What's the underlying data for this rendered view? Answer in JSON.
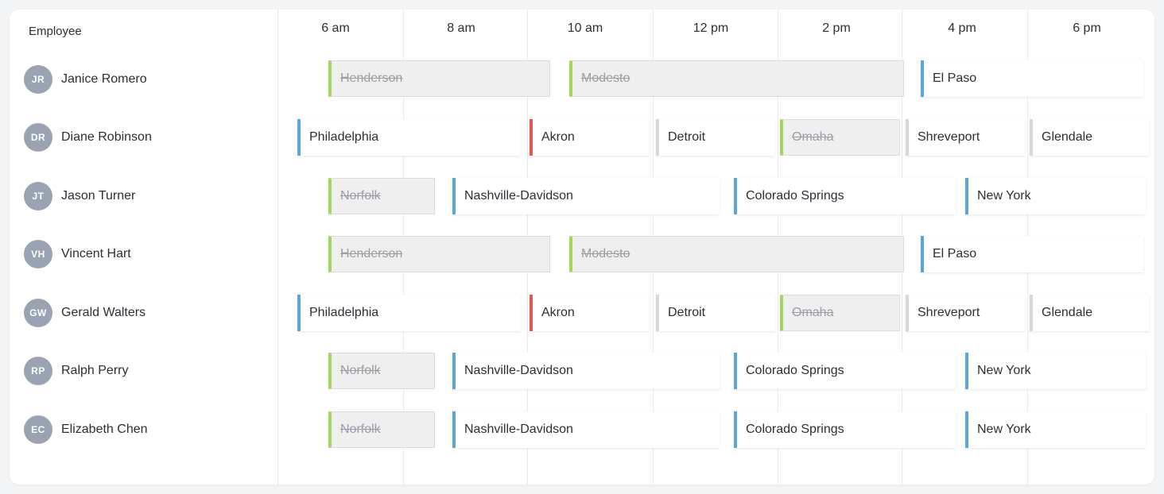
{
  "header": {
    "employee_label": "Employee"
  },
  "times": [
    "6 am",
    "8 am",
    "10 am",
    "12 pm",
    "2 pm",
    "4 pm",
    "6 pm"
  ],
  "employees": [
    {
      "initials": "JR",
      "name": "Janice Romero"
    },
    {
      "initials": "DR",
      "name": "Diane Robinson"
    },
    {
      "initials": "JT",
      "name": "Jason Turner"
    },
    {
      "initials": "VH",
      "name": "Vincent Hart"
    },
    {
      "initials": "GW",
      "name": "Gerald Walters"
    },
    {
      "initials": "RP",
      "name": "Ralph Perry"
    },
    {
      "initials": "EC",
      "name": "Elizabeth Chen"
    }
  ],
  "events": [
    [
      {
        "label": "Henderson",
        "status": "done"
      },
      {
        "label": "Modesto",
        "status": "done"
      },
      {
        "label": "El Paso",
        "status": "blue"
      }
    ],
    [
      {
        "label": "Philadelphia",
        "status": "blue"
      },
      {
        "label": "Akron",
        "status": "red"
      },
      {
        "label": "Detroit",
        "status": "gray"
      },
      {
        "label": "Omaha",
        "status": "done"
      },
      {
        "label": "Shreveport",
        "status": "gray"
      },
      {
        "label": "Glendale",
        "status": "gray"
      }
    ],
    [
      {
        "label": "Norfolk",
        "status": "done"
      },
      {
        "label": "Nashville-Davidson",
        "status": "blue"
      },
      {
        "label": "Colorado Springs",
        "status": "blue"
      },
      {
        "label": "New York",
        "status": "blue"
      }
    ],
    [
      {
        "label": "Henderson",
        "status": "done"
      },
      {
        "label": "Modesto",
        "status": "done"
      },
      {
        "label": "El Paso",
        "status": "blue"
      }
    ],
    [
      {
        "label": "Philadelphia",
        "status": "blue"
      },
      {
        "label": "Akron",
        "status": "red"
      },
      {
        "label": "Detroit",
        "status": "gray"
      },
      {
        "label": "Omaha",
        "status": "done"
      },
      {
        "label": "Shreveport",
        "status": "gray"
      },
      {
        "label": "Glendale",
        "status": "gray"
      }
    ],
    [
      {
        "label": "Norfolk",
        "status": "done"
      },
      {
        "label": "Nashville-Davidson",
        "status": "blue"
      },
      {
        "label": "Colorado Springs",
        "status": "blue"
      },
      {
        "label": "New York",
        "status": "blue"
      }
    ],
    [
      {
        "label": "Norfolk",
        "status": "done"
      },
      {
        "label": "Nashville-Davidson",
        "status": "blue"
      },
      {
        "label": "Colorado Springs",
        "status": "blue"
      },
      {
        "label": "New York",
        "status": "blue"
      }
    ]
  ],
  "colors": {
    "completed_accent": "#a4d65e",
    "scheduled_accent": "#5aa7d6",
    "alert_accent": "#e05a4f",
    "neutral_accent": "#d8d8d8",
    "avatar_bg": "#9aa3b2"
  }
}
